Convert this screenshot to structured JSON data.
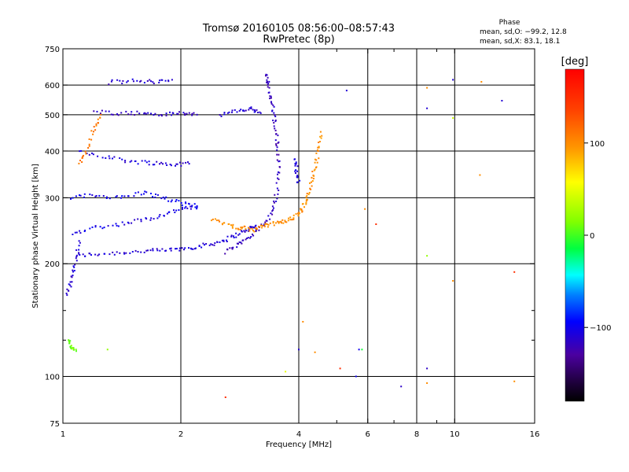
{
  "chart_data": {
    "type": "scatter",
    "title": "Tromsø 20160105 08:56:00–08:57:43",
    "subtitle": "RwPretec (8p)",
    "xlabel": "Frequency [MHz]",
    "ylabel": "Stationary phase Virtual Height [km]",
    "x_scale": "log",
    "y_scale": "log",
    "xlim": [
      1,
      16
    ],
    "ylim": [
      75,
      750
    ],
    "x_ticks": [
      1,
      2,
      4,
      6,
      8,
      10,
      16
    ],
    "x_tick_labels": [
      "1",
      "2",
      "4",
      "6",
      "8",
      "10",
      "16"
    ],
    "y_ticks": [
      75,
      100,
      200,
      300,
      400,
      500,
      600,
      750
    ],
    "y_tick_labels": [
      "75",
      "100",
      "200",
      "300",
      "400",
      "500",
      "600",
      "750"
    ],
    "grid_x": [
      1,
      2,
      4,
      6,
      8,
      10,
      16
    ],
    "grid_y": [
      100,
      200,
      300,
      400,
      500,
      600
    ],
    "minor_x": [
      5,
      7,
      9
    ],
    "minor_y": [
      125,
      150
    ],
    "stats": {
      "heading": "Phase",
      "line1": "mean, sd,O: −99.2, 12.8",
      "line2": "mean, sd,X:  83.1, 18.1"
    },
    "colorbar": {
      "label": "[deg]",
      "range": [
        -180,
        180
      ],
      "ticks": [
        100,
        0,
        -100
      ],
      "tick_labels": [
        "100",
        "0",
        "−100"
      ]
    },
    "traces": [
      {
        "name": "",
        "phase": -110,
        "points": [
          [
            1.08,
            210
          ],
          [
            1.2,
            212
          ],
          [
            1.4,
            214
          ],
          [
            1.6,
            216
          ],
          [
            1.8,
            217
          ],
          [
            2.0,
            219
          ],
          [
            2.2,
            222
          ],
          [
            2.4,
            226
          ],
          [
            2.6,
            232
          ],
          [
            2.8,
            240
          ],
          [
            3.0,
            248
          ],
          [
            3.1,
            252
          ]
        ]
      },
      {
        "name": "",
        "phase": -105,
        "points": [
          [
            1.05,
            240
          ],
          [
            1.2,
            250
          ],
          [
            1.4,
            255
          ],
          [
            1.6,
            262
          ],
          [
            1.8,
            270
          ],
          [
            2.0,
            280
          ],
          [
            2.2,
            283
          ]
        ]
      },
      {
        "name": "",
        "phase": -100,
        "points": [
          [
            1.05,
            300
          ],
          [
            1.2,
            305
          ],
          [
            1.4,
            300
          ],
          [
            1.6,
            310
          ],
          [
            1.8,
            300
          ],
          [
            2.0,
            290
          ],
          [
            2.2,
            285
          ]
        ]
      },
      {
        "name": "",
        "phase": -108,
        "points": [
          [
            1.1,
            400
          ],
          [
            1.3,
            385
          ],
          [
            1.5,
            375
          ],
          [
            1.7,
            372
          ],
          [
            1.9,
            368
          ],
          [
            2.1,
            370
          ]
        ]
      },
      {
        "name": "",
        "phase": -115,
        "points": [
          [
            1.2,
            510
          ],
          [
            1.4,
            505
          ],
          [
            1.6,
            505
          ],
          [
            1.8,
            500
          ],
          [
            2.0,
            505
          ],
          [
            2.2,
            500
          ]
        ]
      },
      {
        "name": "",
        "phase": -112,
        "points": [
          [
            1.3,
            610
          ],
          [
            1.5,
            615
          ],
          [
            1.7,
            612
          ],
          [
            1.9,
            620
          ]
        ]
      },
      {
        "name": "",
        "phase": -110,
        "points": [
          [
            2.5,
            500
          ],
          [
            2.8,
            510
          ],
          [
            3.0,
            520
          ],
          [
            3.2,
            505
          ]
        ]
      },
      {
        "name": "",
        "phase": -118,
        "points": [
          [
            2.6,
            215
          ],
          [
            2.8,
            225
          ],
          [
            3.0,
            235
          ],
          [
            3.2,
            250
          ],
          [
            3.4,
            270
          ],
          [
            3.5,
            300
          ],
          [
            3.55,
            350
          ],
          [
            3.55,
            400
          ],
          [
            3.5,
            450
          ],
          [
            3.45,
            500
          ],
          [
            3.4,
            550
          ],
          [
            3.35,
            600
          ],
          [
            3.3,
            640
          ]
        ]
      },
      {
        "name": "",
        "phase": 100,
        "points": [
          [
            3.0,
            245
          ],
          [
            3.2,
            250
          ],
          [
            3.4,
            255
          ],
          [
            3.6,
            258
          ],
          [
            3.8,
            262
          ],
          [
            4.0,
            272
          ],
          [
            4.1,
            282
          ],
          [
            4.2,
            300
          ],
          [
            4.3,
            330
          ],
          [
            4.4,
            360
          ],
          [
            4.5,
            400
          ],
          [
            4.55,
            450
          ]
        ]
      },
      {
        "name": "",
        "phase": 100,
        "points": [
          [
            2.4,
            262
          ],
          [
            2.6,
            255
          ],
          [
            2.8,
            250
          ],
          [
            3.0,
            248
          ]
        ]
      },
      {
        "name": "",
        "phase": -105,
        "points": [
          [
            4.0,
            330
          ],
          [
            3.95,
            355
          ],
          [
            3.9,
            380
          ]
        ]
      },
      {
        "name": "",
        "phase": 110,
        "points": [
          [
            1.1,
            370
          ],
          [
            1.15,
            400
          ],
          [
            1.2,
            460
          ],
          [
            1.25,
            500
          ]
        ]
      },
      {
        "name": "",
        "phase": -110,
        "points": [
          [
            1.02,
            165
          ],
          [
            1.05,
            180
          ],
          [
            1.08,
            200
          ],
          [
            1.1,
            230
          ]
        ]
      },
      {
        "name": "",
        "phase": 10,
        "points": [
          [
            1.03,
            125
          ],
          [
            1.05,
            120
          ],
          [
            1.08,
            118
          ]
        ]
      }
    ],
    "isolated_points": [
      {
        "x": 5.3,
        "y": 580,
        "phase": -110
      },
      {
        "x": 5.6,
        "y": 100,
        "phase": -100
      },
      {
        "x": 5.8,
        "y": 118,
        "phase": -10
      },
      {
        "x": 5.7,
        "y": 118,
        "phase": -100
      },
      {
        "x": 8.5,
        "y": 520,
        "phase": -110
      },
      {
        "x": 8.5,
        "y": 105,
        "phase": -115
      },
      {
        "x": 7.3,
        "y": 94,
        "phase": -115
      },
      {
        "x": 9.9,
        "y": 620,
        "phase": -110
      },
      {
        "x": 9.9,
        "y": 490,
        "phase": 40
      },
      {
        "x": 13.2,
        "y": 545,
        "phase": -110
      },
      {
        "x": 14.2,
        "y": 190,
        "phase": 150
      },
      {
        "x": 11.6,
        "y": 345,
        "phase": 100
      },
      {
        "x": 5.1,
        "y": 105,
        "phase": 150
      },
      {
        "x": 3.7,
        "y": 103,
        "phase": 50
      },
      {
        "x": 4.0,
        "y": 118,
        "phase": -110
      },
      {
        "x": 4.4,
        "y": 116,
        "phase": 100
      },
      {
        "x": 2.6,
        "y": 88,
        "phase": 150
      },
      {
        "x": 14.2,
        "y": 97,
        "phase": 100
      },
      {
        "x": 8.5,
        "y": 96,
        "phase": 100
      },
      {
        "x": 8.5,
        "y": 210,
        "phase": 20
      },
      {
        "x": 9.9,
        "y": 180,
        "phase": 100
      },
      {
        "x": 5.9,
        "y": 280,
        "phase": 100
      },
      {
        "x": 6.3,
        "y": 255,
        "phase": 150
      },
      {
        "x": 11.7,
        "y": 612,
        "phase": 100
      },
      {
        "x": 8.5,
        "y": 590,
        "phase": 100
      },
      {
        "x": 4.1,
        "y": 140,
        "phase": 100
      },
      {
        "x": 1.3,
        "y": 118,
        "phase": 20
      }
    ]
  }
}
